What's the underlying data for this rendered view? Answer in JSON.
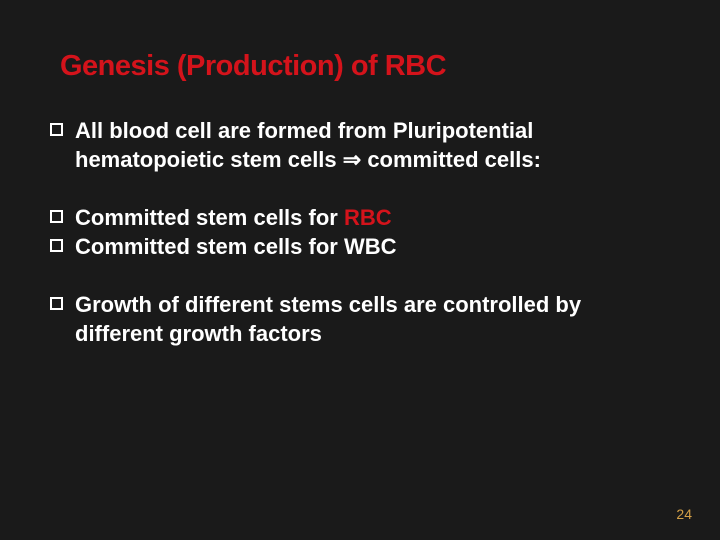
{
  "slide": {
    "title": "Genesis (Production) of RBC",
    "title_color": "#d4131b",
    "background_color": "#1a1a1a",
    "text_color": "#ffffff",
    "accent_color": "#d4a047",
    "title_fontsize": 29,
    "body_fontsize": 22,
    "bullets": {
      "group1": {
        "item1_pre": "All blood cell are formed from Pluripotential hematopoietic stem cells ",
        "item1_arrow": "⇒",
        "item1_post": " committed cells:"
      },
      "group2": {
        "item1_pre": "Committed stem cells for ",
        "item1_accent": "RBC",
        "item2": "Committed stem cells for WBC"
      },
      "group3": {
        "item1": "Growth of different stems cells are controlled by different growth factors"
      }
    },
    "page_number": "24"
  }
}
